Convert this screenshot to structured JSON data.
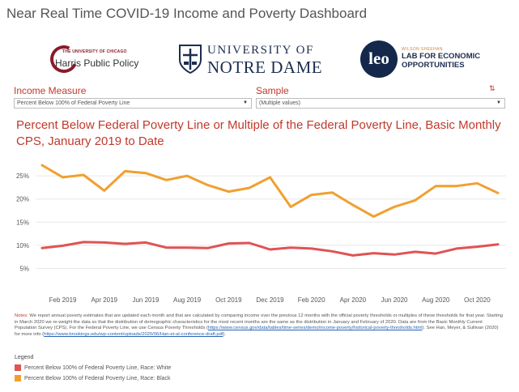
{
  "dashboard": {
    "title": "Near Real Time COVID-19 Income and Poverty Dashboard"
  },
  "logos": {
    "harris": {
      "superscript": "THE UNIVERSITY OF CHICAGO",
      "name": "Harris Public Policy"
    },
    "notre_dame": {
      "line1": "UNIVERSITY OF",
      "line2": "NOTRE DAME"
    },
    "leo": {
      "mark": "leo",
      "superscript": "WILSON SHEEHAN",
      "line1": "LAB FOR ECONOMIC",
      "line2": "OPPORTUNITIES"
    }
  },
  "filters": {
    "income_measure": {
      "label": "Income Measure",
      "value": "Percent Below 100% of Federal Poverty Line"
    },
    "sample": {
      "label": "Sample",
      "value": "(Multiple values)"
    }
  },
  "colors": {
    "white_series": "#e05353",
    "black_series": "#f0a030",
    "accent": "#c0392b",
    "grid": "#e8e8e8"
  },
  "chart_data": {
    "type": "line",
    "title": "Percent Below Federal Poverty Line or Multiple of the Federal Poverty Line, Basic Monthly CPS, January 2019 to Date",
    "x": [
      "Jan 2019",
      "Feb 2019",
      "Mar 2019",
      "Apr 2019",
      "May 2019",
      "Jun 2019",
      "Jul 2019",
      "Aug 2019",
      "Sep 2019",
      "Oct 2019",
      "Nov 2019",
      "Dec 2019",
      "Jan 2020",
      "Feb 2020",
      "Mar 2020",
      "Apr 2020",
      "May 2020",
      "Jun 2020",
      "Jul 2020",
      "Aug 2020",
      "Sep 2020",
      "Oct 2020",
      "Nov 2020"
    ],
    "x_tick_labels": [
      "Feb 2019",
      "Apr 2019",
      "Jun 2019",
      "Aug 2019",
      "Oct 2019",
      "Dec 2019",
      "Feb 2020",
      "Apr 2020",
      "Jun 2020",
      "Aug 2020",
      "Oct 2020"
    ],
    "y_tick_labels": [
      "5%",
      "10%",
      "15%",
      "20%",
      "25%"
    ],
    "ylim": [
      0,
      28
    ],
    "y_unit": "%",
    "grid": true,
    "legend_position": "bottom-left",
    "series": [
      {
        "name": "Percent Below 100% of Federal Poverty Line, Race: White",
        "color": "#e05353",
        "values": [
          9.4,
          9.9,
          10.7,
          10.6,
          10.3,
          10.6,
          9.5,
          9.5,
          9.4,
          10.4,
          10.5,
          9.1,
          9.5,
          9.3,
          8.7,
          7.8,
          8.3,
          8.0,
          8.6,
          8.2,
          9.3,
          9.7,
          10.2
        ]
      },
      {
        "name": "Percent Below 100% of Federal Poverty Line, Race: Black",
        "color": "#f0a030",
        "values": [
          27.3,
          24.7,
          25.2,
          21.8,
          26.0,
          25.6,
          24.1,
          25.0,
          23.0,
          21.6,
          22.4,
          24.7,
          18.3,
          20.9,
          21.4,
          18.7,
          16.2,
          18.3,
          19.7,
          22.8,
          22.8,
          23.4,
          21.3
        ]
      }
    ]
  },
  "notes": {
    "lead": "Notes:",
    "text1": " We report annual poverty estimates that are updated each month and that are calculated by comparing income over the previous 12 months with the official poverty thresholds or multiples of these thresholds for that year.  Starting in March 2020 we re-weight the data so that the distribution of demographic characteristics for the most recent months are the same as the distribution in January and February of 2020. Data are from the Basic Monthly Current Population Survey (CPS). For the Federal Poverty Line, we use Census Poverty Thresholds (",
    "link1": "https://www.census.gov/data/tables/time-series/demo/income-poverty/historical-poverty-thresholds.html",
    "text2": "). See Han, Meyer, & Sullivan (2020) for more info (",
    "link2": "https://www.brookings.edu/wp-content/uploads/2020/06/Han-et-al-conference-draft.pdf",
    "text3": ")."
  },
  "legend": {
    "title": "Legend"
  }
}
